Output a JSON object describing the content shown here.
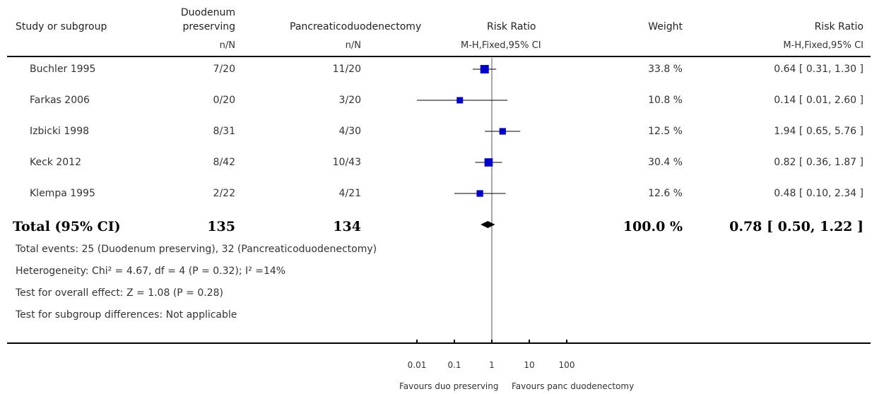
{
  "headers": {
    "study": "Study or subgroup",
    "group1_line1": "Duodenum",
    "group1_line2": "preserving",
    "group2": "Pancreaticoduodenectomy",
    "rr_plot": "Risk Ratio",
    "weight": "Weight",
    "rr_text": "Risk Ratio",
    "sub_g1": "n/N",
    "sub_g2": "n/N",
    "sub_rr_plot": "M-H,Fixed,95% CI",
    "sub_rr_text": "M-H,Fixed,95% CI"
  },
  "rows": [
    {
      "study": "Buchler 1995",
      "g1": "7/20",
      "g2": "11/20",
      "weight": "33.8 %",
      "rr_text": "0.64 [ 0.31, 1.30 ]"
    },
    {
      "study": "Farkas 2006",
      "g1": "0/20",
      "g2": "3/20",
      "weight": "10.8 %",
      "rr_text": "0.14 [ 0.01, 2.60 ]"
    },
    {
      "study": "Izbicki 1998",
      "g1": "8/31",
      "g2": "4/30",
      "weight": "12.5 %",
      "rr_text": "1.94 [ 0.65, 5.76 ]"
    },
    {
      "study": "Keck 2012",
      "g1": "8/42",
      "g2": "10/43",
      "weight": "30.4 %",
      "rr_text": "0.82 [ 0.36, 1.87 ]"
    },
    {
      "study": "Klempa 1995",
      "g1": "2/22",
      "g2": "4/21",
      "weight": "12.6 %",
      "rr_text": "0.48 [ 0.10, 2.34 ]"
    }
  ],
  "total": {
    "label": "Total (95% CI)",
    "g1": "135",
    "g2": "134",
    "weight": "100.0 %",
    "rr_text": "0.78 [ 0.50, 1.22 ]"
  },
  "footer": {
    "events": "Total events: 25 (Duodenum preserving), 32 (Pancreaticoduodenectomy)",
    "heterogeneity": "Heterogeneity: Chi² = 4.67, df = 4 (P = 0.32); I² =14%",
    "overall": "Test for overall effect: Z = 1.08 (P = 0.28)",
    "subgroup": "Test for subgroup differences: Not applicable"
  },
  "axis": {
    "favours_left": "Favours duo preserving",
    "favours_right": "Favours panc duodenectomy"
  },
  "chart_data": {
    "type": "forest",
    "scale": "log",
    "xlim": [
      0.01,
      100
    ],
    "ticks": [
      {
        "value": 0.01,
        "label": "0.01"
      },
      {
        "value": 0.1,
        "label": "0.1"
      },
      {
        "value": 1,
        "label": "1"
      },
      {
        "value": 10,
        "label": "10"
      },
      {
        "value": 100,
        "label": "100"
      }
    ],
    "studies": [
      {
        "name": "Buchler 1995",
        "rr": 0.64,
        "lo": 0.31,
        "hi": 1.3,
        "weight": 33.8
      },
      {
        "name": "Farkas 2006",
        "rr": 0.14,
        "lo": 0.01,
        "hi": 2.6,
        "weight": 10.8
      },
      {
        "name": "Izbicki 1998",
        "rr": 1.94,
        "lo": 0.65,
        "hi": 5.76,
        "weight": 12.5
      },
      {
        "name": "Keck 2012",
        "rr": 0.82,
        "lo": 0.36,
        "hi": 1.87,
        "weight": 30.4
      },
      {
        "name": "Klempa 1995",
        "rr": 0.48,
        "lo": 0.1,
        "hi": 2.34,
        "weight": 12.6
      }
    ],
    "pooled": {
      "rr": 0.78,
      "lo": 0.5,
      "hi": 1.22
    },
    "marker_color": "#0000cc"
  }
}
